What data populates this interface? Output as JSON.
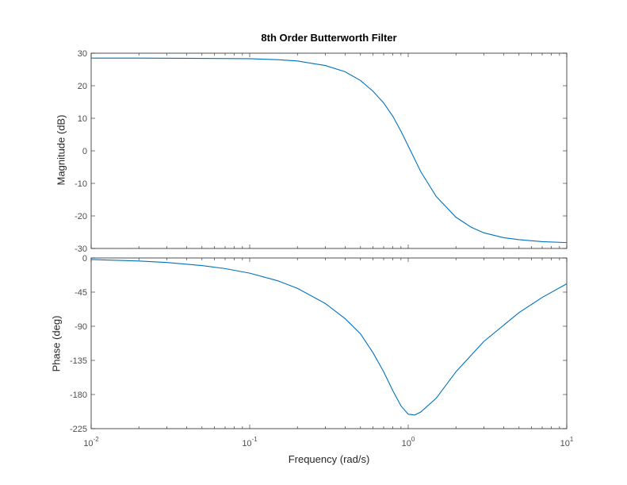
{
  "title": "8th Order Butterworth Filter",
  "xlabel": "Frequency  (rad/s)",
  "chart_data": [
    {
      "type": "line",
      "panel": "magnitude",
      "ylabel": "Magnitude (dB)",
      "xscale": "log",
      "xlim": [
        0.01,
        10
      ],
      "ylim": [
        -30,
        30
      ],
      "yticks": [
        -30,
        -20,
        -10,
        0,
        10,
        20,
        30
      ],
      "grid": false,
      "color": "#0072BD",
      "series": [
        {
          "x": [
            0.01,
            0.02,
            0.05,
            0.1,
            0.15,
            0.2,
            0.3,
            0.4,
            0.5,
            0.6,
            0.7,
            0.8,
            0.9,
            1.0,
            1.2,
            1.5,
            2.0,
            2.5,
            3.0,
            4.0,
            5.0,
            7.0,
            10.0
          ],
          "y": [
            28.5,
            28.5,
            28.4,
            28.3,
            28.0,
            27.6,
            26.2,
            24.3,
            21.6,
            18.3,
            14.7,
            10.6,
            6.0,
            1.5,
            -6.4,
            -14.0,
            -20.4,
            -23.5,
            -25.2,
            -26.7,
            -27.3,
            -27.9,
            -28.2
          ]
        }
      ]
    },
    {
      "type": "line",
      "panel": "phase",
      "ylabel": "Phase (deg)",
      "xscale": "log",
      "xlim": [
        0.01,
        10
      ],
      "ylim": [
        -225,
        0
      ],
      "yticks": [
        -225,
        -180,
        -135,
        -90,
        -45,
        0
      ],
      "grid": false,
      "color": "#0072BD",
      "series": [
        {
          "x": [
            0.01,
            0.02,
            0.03,
            0.05,
            0.07,
            0.1,
            0.15,
            0.2,
            0.3,
            0.4,
            0.5,
            0.6,
            0.7,
            0.8,
            0.9,
            1.0,
            1.1,
            1.2,
            1.5,
            2.0,
            3.0,
            5.0,
            7.0,
            10.0
          ],
          "y": [
            -2,
            -4,
            -6,
            -10,
            -14,
            -20,
            -30,
            -40,
            -60,
            -80,
            -100,
            -125,
            -150,
            -175,
            -195,
            -206,
            -207,
            -203,
            -185,
            -150,
            -110,
            -72,
            -52,
            -34
          ]
        }
      ]
    }
  ],
  "xticks": [
    {
      "value": 0.01,
      "base": "10",
      "exp": "-2"
    },
    {
      "value": 0.1,
      "base": "10",
      "exp": "-1"
    },
    {
      "value": 1,
      "base": "10",
      "exp": "0"
    },
    {
      "value": 10,
      "base": "10",
      "exp": "1"
    }
  ]
}
